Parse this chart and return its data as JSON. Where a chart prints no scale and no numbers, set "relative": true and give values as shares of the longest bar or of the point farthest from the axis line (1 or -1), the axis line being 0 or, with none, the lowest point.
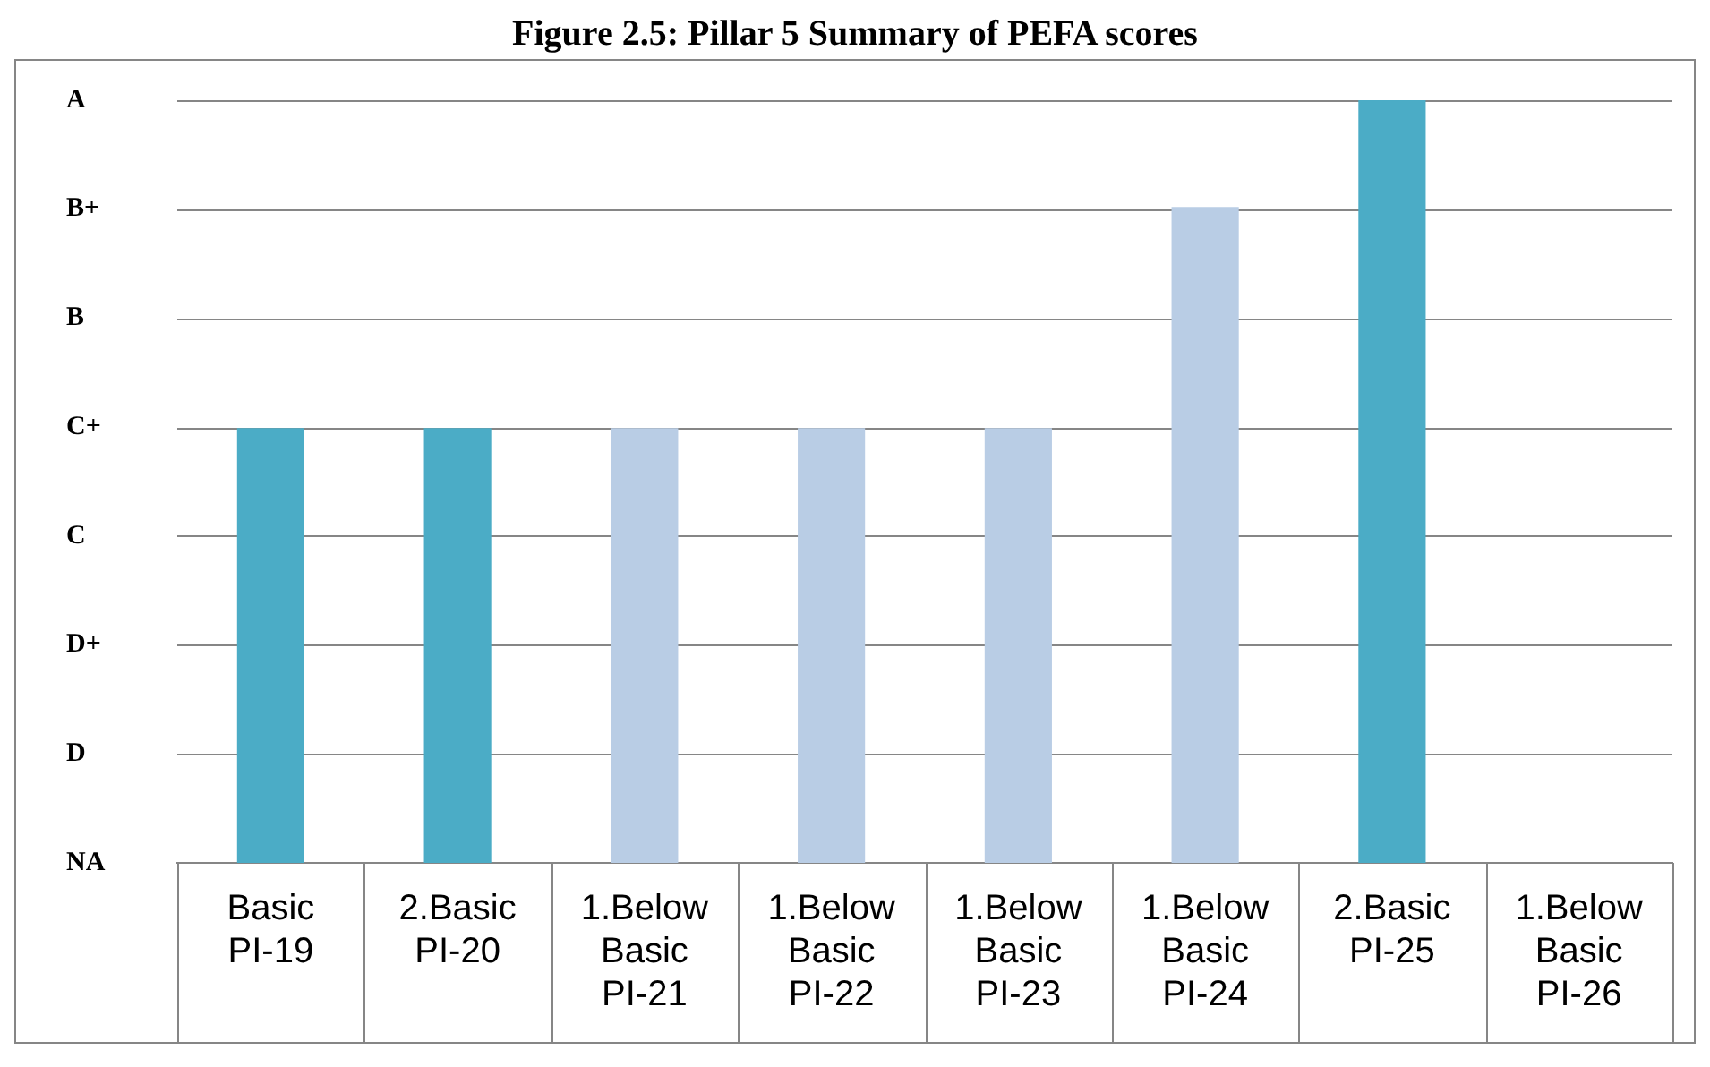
{
  "chart_data": {
    "type": "bar",
    "title": "Figure 2.5: Pillar 5 Summary of PEFA scores",
    "categories": [
      "Basic\nPI-19",
      "2.Basic\nPI-20",
      "1.Below Basic\nPI-21",
      "1.Below Basic\nPI-22",
      "1.Below Basic\nPI-23",
      "1.Below Basic\nPI-24",
      "2.Basic\nPI-25",
      "1.Below Basic\nPI-26"
    ],
    "values": [
      0.57,
      0.57,
      0.57,
      0.57,
      0.57,
      0.86,
      1,
      0
    ],
    "colors": [
      "#4bacc6",
      "#4bacc6",
      "#b9cde5",
      "#b9cde5",
      "#b9cde5",
      "#b9cde5",
      "#4bacc6",
      "#b9cde5"
    ],
    "relative": true,
    "annotations": [
      "NA",
      "D",
      "D+",
      "C",
      "C+",
      "B",
      "B+",
      "A"
    ],
    "grid": "y",
    "legend": false
  }
}
